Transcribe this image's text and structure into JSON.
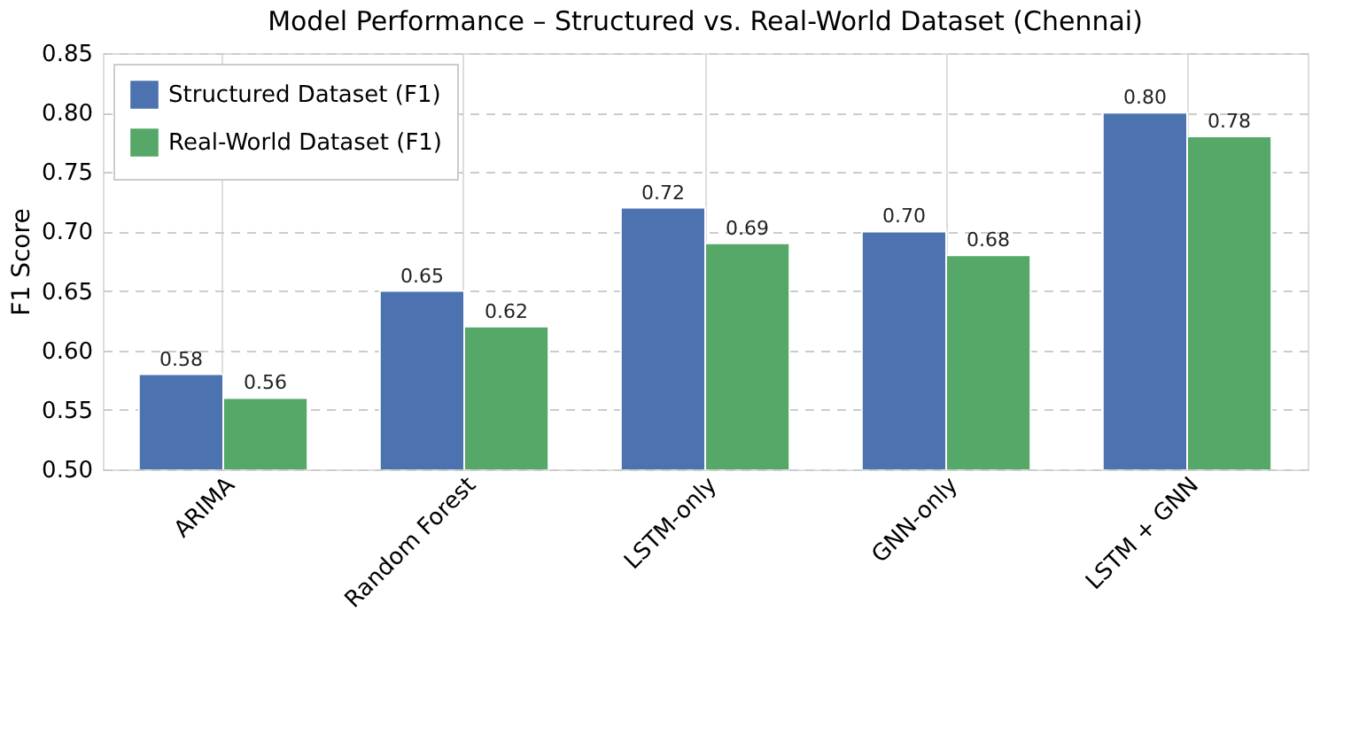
{
  "chart_data": {
    "type": "bar",
    "title": "Model Performance – Structured vs. Real-World Dataset (Chennai)",
    "ylabel": "F1 Score",
    "categories": [
      "ARIMA",
      "Random Forest",
      "LSTM-only",
      "GNN-only",
      "LSTM + GNN"
    ],
    "series": [
      {
        "name": "Structured Dataset (F1)",
        "color": "#4c72b0",
        "values": [
          0.58,
          0.65,
          0.72,
          0.7,
          0.8
        ],
        "value_labels": [
          "0.58",
          "0.65",
          "0.72",
          "0.70",
          "0.80"
        ]
      },
      {
        "name": "Real-World Dataset (F1)",
        "color": "#55a868",
        "values": [
          0.56,
          0.62,
          0.69,
          0.68,
          0.78
        ],
        "value_labels": [
          "0.56",
          "0.62",
          "0.69",
          "0.68",
          "0.78"
        ]
      }
    ],
    "ylim": [
      0.5,
      0.85
    ],
    "yticks": [
      {
        "value": 0.5,
        "label": "0.50"
      },
      {
        "value": 0.55,
        "label": "0.55"
      },
      {
        "value": 0.6,
        "label": "0.60"
      },
      {
        "value": 0.65,
        "label": "0.65"
      },
      {
        "value": 0.7,
        "label": "0.70"
      },
      {
        "value": 0.75,
        "label": "0.75"
      },
      {
        "value": 0.8,
        "label": "0.80"
      },
      {
        "value": 0.85,
        "label": "0.85"
      }
    ],
    "grid": true,
    "legend": "top left"
  }
}
